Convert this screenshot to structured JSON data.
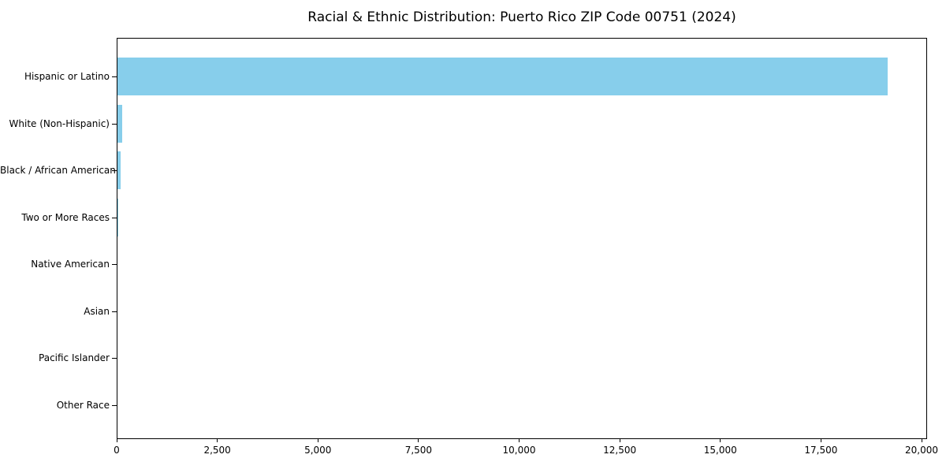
{
  "page": {
    "background_color": "#ffffff",
    "title": "Racial & Ethnic Distribution: Puerto Rico ZIP Code 00751 (2024)"
  },
  "chart_data": {
    "type": "bar",
    "orientation": "horizontal",
    "title": "Racial & Ethnic Distribution: Puerto Rico ZIP Code 00751 (2024)",
    "categories": [
      "Hispanic or Latino",
      "White (Non-Hispanic)",
      "Black / African American",
      "Two or More Races",
      "Native American",
      "Asian",
      "Pacific Islander",
      "Other Race"
    ],
    "values": [
      19140,
      115,
      80,
      20,
      0,
      0,
      0,
      0
    ],
    "xlabel": "",
    "ylabel": "",
    "xlim": [
      0,
      20137
    ],
    "x_ticks": [
      0,
      2500,
      5000,
      7500,
      10000,
      12500,
      15000,
      17500,
      20000
    ],
    "x_tick_labels": [
      "0",
      "2,500",
      "5,000",
      "7,500",
      "10,000",
      "12,500",
      "15,000",
      "17,500",
      "20,000"
    ],
    "bar_color": "#87CEEB",
    "axis_color": "#000000",
    "grid": false,
    "legend_position": "none"
  }
}
